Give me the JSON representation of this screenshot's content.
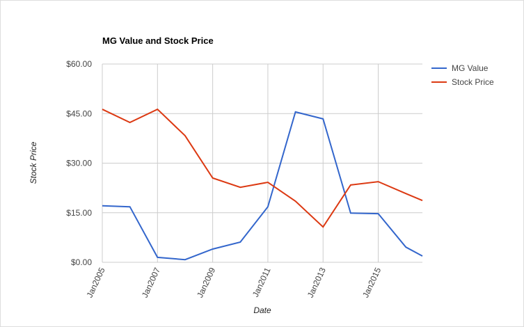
{
  "chart_data": {
    "type": "line",
    "title": "MG Value and Stock Price",
    "x_label": "Date",
    "y_label": "Stock Price",
    "x": [
      2005,
      2006,
      2007,
      2008,
      2009,
      2010,
      2011,
      2012,
      2013,
      2014,
      2015,
      2016,
      2016.6
    ],
    "series": [
      {
        "name": "MG Value",
        "color": "#3366cc",
        "values": [
          17.1,
          16.8,
          1.5,
          0.8,
          4.0,
          6.1,
          16.8,
          45.5,
          43.4,
          14.9,
          14.7,
          4.6,
          1.9
        ]
      },
      {
        "name": "Stock Price",
        "color": "#dc3912",
        "values": [
          46.3,
          42.3,
          46.3,
          38.3,
          25.5,
          22.7,
          24.2,
          18.5,
          10.7,
          23.4,
          24.4,
          20.8,
          18.7
        ]
      }
    ],
    "xlim": [
      2005,
      2016.6
    ],
    "xticks": [
      {
        "value": 2005,
        "label": "Jan2005"
      },
      {
        "value": 2007,
        "label": "Jan2007"
      },
      {
        "value": 2009,
        "label": "Jan2009"
      },
      {
        "value": 2011,
        "label": "Jan2011"
      },
      {
        "value": 2013,
        "label": "Jan2013"
      },
      {
        "value": 2015,
        "label": "Jan2015"
      }
    ],
    "ylim": [
      0,
      60
    ],
    "yticks": [
      {
        "value": 0,
        "label": "$0.00"
      },
      {
        "value": 15,
        "label": "$15.00"
      },
      {
        "value": 30,
        "label": "$30.00"
      },
      {
        "value": 45,
        "label": "$45.00"
      },
      {
        "value": 60,
        "label": "$60.00"
      }
    ],
    "grid": true,
    "legend": "right"
  }
}
